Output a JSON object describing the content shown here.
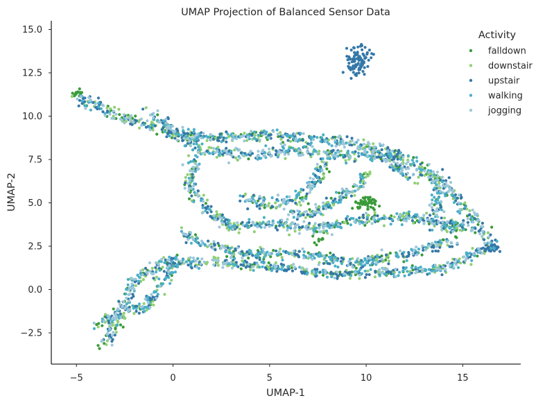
{
  "chart_data": {
    "type": "scatter",
    "title": "UMAP Projection of Balanced Sensor Data",
    "xlabel": "UMAP-1",
    "ylabel": "UMAP-2",
    "xlim": [
      -6.3,
      18.0
    ],
    "ylim": [
      -4.3,
      15.5
    ],
    "xticks": [
      -5,
      0,
      5,
      10,
      15
    ],
    "xtick_labels": [
      "−5",
      "0",
      "5",
      "10",
      "15"
    ],
    "yticks": [
      -2.5,
      0.0,
      2.5,
      5.0,
      7.5,
      10.0,
      12.5,
      15.0
    ],
    "ytick_labels": [
      "−2.5",
      "0.0",
      "2.5",
      "5.0",
      "7.5",
      "10.0",
      "12.5",
      "15.0"
    ],
    "grid": false,
    "legend": {
      "title": "Activity",
      "placement": "top-right",
      "entries": [
        "falldown",
        "downstair",
        "upstair",
        "walking",
        "jogging"
      ]
    },
    "series": [
      {
        "name": "falldown",
        "color": "#3a9b3a",
        "clusters": [
          [
            10.0,
            5.0,
            0.6,
            0.4,
            60
          ],
          [
            7.6,
            3.0,
            0.4,
            0.5,
            10
          ],
          [
            -5.0,
            11.3,
            0.3,
            0.3,
            12
          ]
        ]
      },
      {
        "name": "downstair",
        "color": "#90cf75"
      },
      {
        "name": "upstair",
        "color": "#3478a8",
        "clusters": [
          [
            9.6,
            13.2,
            0.6,
            0.8,
            90
          ],
          [
            16.5,
            2.4,
            0.4,
            0.25,
            30
          ]
        ]
      },
      {
        "name": "walking",
        "color": "#4bb0c8"
      },
      {
        "name": "jogging",
        "color": "#9dc7da"
      }
    ],
    "regions": [
      [
        [
          -5.0,
          11.2
        ],
        [
          -3.0,
          10.1
        ],
        [
          0.0,
          9.0
        ],
        [
          2.5,
          8.7
        ],
        [
          5.0,
          8.9
        ],
        [
          8.0,
          8.6
        ],
        [
          11.0,
          8.1
        ],
        [
          14.0,
          6.3
        ],
        [
          16.5,
          2.5
        ],
        [
          14.0,
          1.2
        ],
        [
          11.0,
          1.0
        ],
        [
          8.0,
          0.9
        ],
        [
          5.0,
          1.3
        ],
        [
          2.5,
          1.6
        ],
        [
          -0.5,
          1.6
        ],
        [
          -2.0,
          0.5
        ],
        [
          -3.5,
          -3.2
        ]
      ],
      [
        [
          -1.2,
          10.3
        ],
        [
          1.5,
          8.0
        ],
        [
          4.0,
          7.7
        ],
        [
          6.0,
          8.0
        ],
        [
          8.5,
          7.8
        ],
        [
          11.0,
          7.6
        ],
        [
          12.5,
          6.3
        ]
      ],
      [
        [
          1.2,
          7.6
        ],
        [
          0.8,
          6.2
        ],
        [
          1.5,
          5.0
        ],
        [
          3.0,
          3.6
        ],
        [
          5.0,
          3.8
        ],
        [
          7.5,
          3.5
        ],
        [
          9.5,
          4.0
        ],
        [
          12.0,
          4.2
        ],
        [
          14.0,
          3.8
        ],
        [
          15.5,
          3.5
        ]
      ],
      [
        [
          0.5,
          3.2
        ],
        [
          2.0,
          2.5
        ],
        [
          4.0,
          2.0
        ],
        [
          6.5,
          2.1
        ],
        [
          9.0,
          1.5
        ],
        [
          12.0,
          2.0
        ],
        [
          14.5,
          2.8
        ]
      ],
      [
        [
          3.5,
          5.3
        ],
        [
          5.0,
          4.9
        ],
        [
          6.5,
          5.2
        ],
        [
          7.3,
          6.3
        ],
        [
          8.0,
          7.4
        ]
      ],
      [
        [
          -3.8,
          -2.0
        ],
        [
          -2.5,
          -1.0
        ],
        [
          -1.5,
          -1.2
        ],
        [
          -0.5,
          0.6
        ],
        [
          0.0,
          1.6
        ]
      ],
      [
        [
          10.0,
          6.8
        ],
        [
          9.5,
          5.8
        ],
        [
          8.3,
          5.2
        ],
        [
          7.5,
          4.5
        ],
        [
          6.0,
          4.3
        ]
      ],
      [
        [
          13.0,
          7.0
        ],
        [
          13.8,
          5.5
        ],
        [
          13.5,
          4.0
        ],
        [
          14.5,
          3.4
        ]
      ]
    ]
  }
}
